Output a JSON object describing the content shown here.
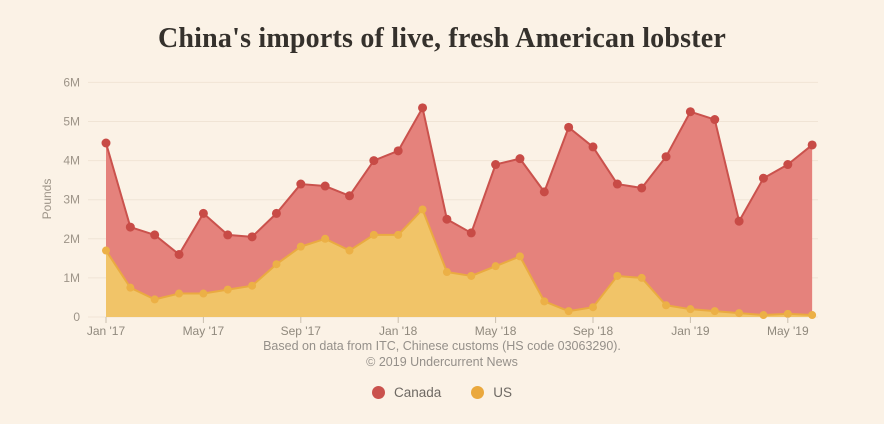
{
  "title": "China's imports of live, fresh American lobster",
  "footer": {
    "source_line": "Based on data from ITC, Chinese customs (HS code 03063290).",
    "copyright_line": "© 2019 Undercurrent News"
  },
  "legend": [
    {
      "label": "Canada",
      "color": "#ca524d"
    },
    {
      "label": "US",
      "color": "#eaa83d"
    }
  ],
  "colors": {
    "background": "#fbf2e6",
    "gridline": "#f0e4d5",
    "tick": "#c9beae",
    "canada_fill": "#e5827c",
    "canada_line": "#ca524d",
    "us_fill": "#f1c468",
    "us_line": "#eaaa41",
    "us_marker": "#ecb046",
    "title_text": "#35312c",
    "axis_text": "#9d9488",
    "footer_text": "#95908a"
  },
  "chart_data": {
    "type": "area",
    "title": "China's imports of live, fresh American lobster",
    "xlabel": "",
    "ylabel": "Pounds",
    "unit": "pounds",
    "ylim_millions": [
      0,
      6
    ],
    "y_tick_labels": [
      "0",
      "1M",
      "2M",
      "3M",
      "4M",
      "5M",
      "6M"
    ],
    "x_tick_labels": [
      "Jan '17",
      "May '17",
      "Sep '17",
      "Jan '18",
      "May '18",
      "Sep '18",
      "Jan '19",
      "May '19"
    ],
    "x_tick_interval": 4,
    "grid": "horizontal",
    "legend_position": "bottom",
    "stacked": false,
    "categories": [
      "Jan '17",
      "Feb '17",
      "Mar '17",
      "Apr '17",
      "May '17",
      "Jun '17",
      "Jul '17",
      "Aug '17",
      "Sep '17",
      "Oct '17",
      "Nov '17",
      "Dec '17",
      "Jan '18",
      "Feb '18",
      "Mar '18",
      "Apr '18",
      "May '18",
      "Jun '18",
      "Jul '18",
      "Aug '18",
      "Sep '18",
      "Oct '18",
      "Nov '18",
      "Dec '18",
      "Jan '19",
      "Feb '19",
      "Mar '19",
      "Apr '19",
      "May '19",
      "Jun '19"
    ],
    "series": [
      {
        "name": "Canada",
        "fill": "#e5827c",
        "line": "#ca524d",
        "marker": "#c84b46",
        "marker_radius": 4.5,
        "values_millions": [
          4.45,
          2.3,
          2.1,
          1.6,
          2.65,
          2.1,
          2.05,
          2.65,
          3.4,
          3.35,
          3.1,
          4.0,
          4.25,
          5.35,
          2.5,
          2.15,
          3.9,
          4.05,
          3.2,
          4.85,
          4.35,
          3.4,
          3.3,
          4.1,
          5.25,
          5.05,
          2.45,
          3.55,
          3.9,
          4.4
        ]
      },
      {
        "name": "US",
        "fill": "#f1c468",
        "line": "#eaaa41",
        "marker": "#ecb046",
        "marker_radius": 4,
        "values_millions": [
          1.7,
          0.75,
          0.45,
          0.6,
          0.6,
          0.7,
          0.8,
          1.35,
          1.8,
          2.0,
          1.7,
          2.1,
          2.1,
          2.75,
          1.15,
          1.05,
          1.3,
          1.55,
          0.4,
          0.15,
          0.25,
          1.05,
          1.0,
          0.3,
          0.2,
          0.15,
          0.1,
          0.05,
          0.08,
          0.05
        ]
      }
    ]
  }
}
